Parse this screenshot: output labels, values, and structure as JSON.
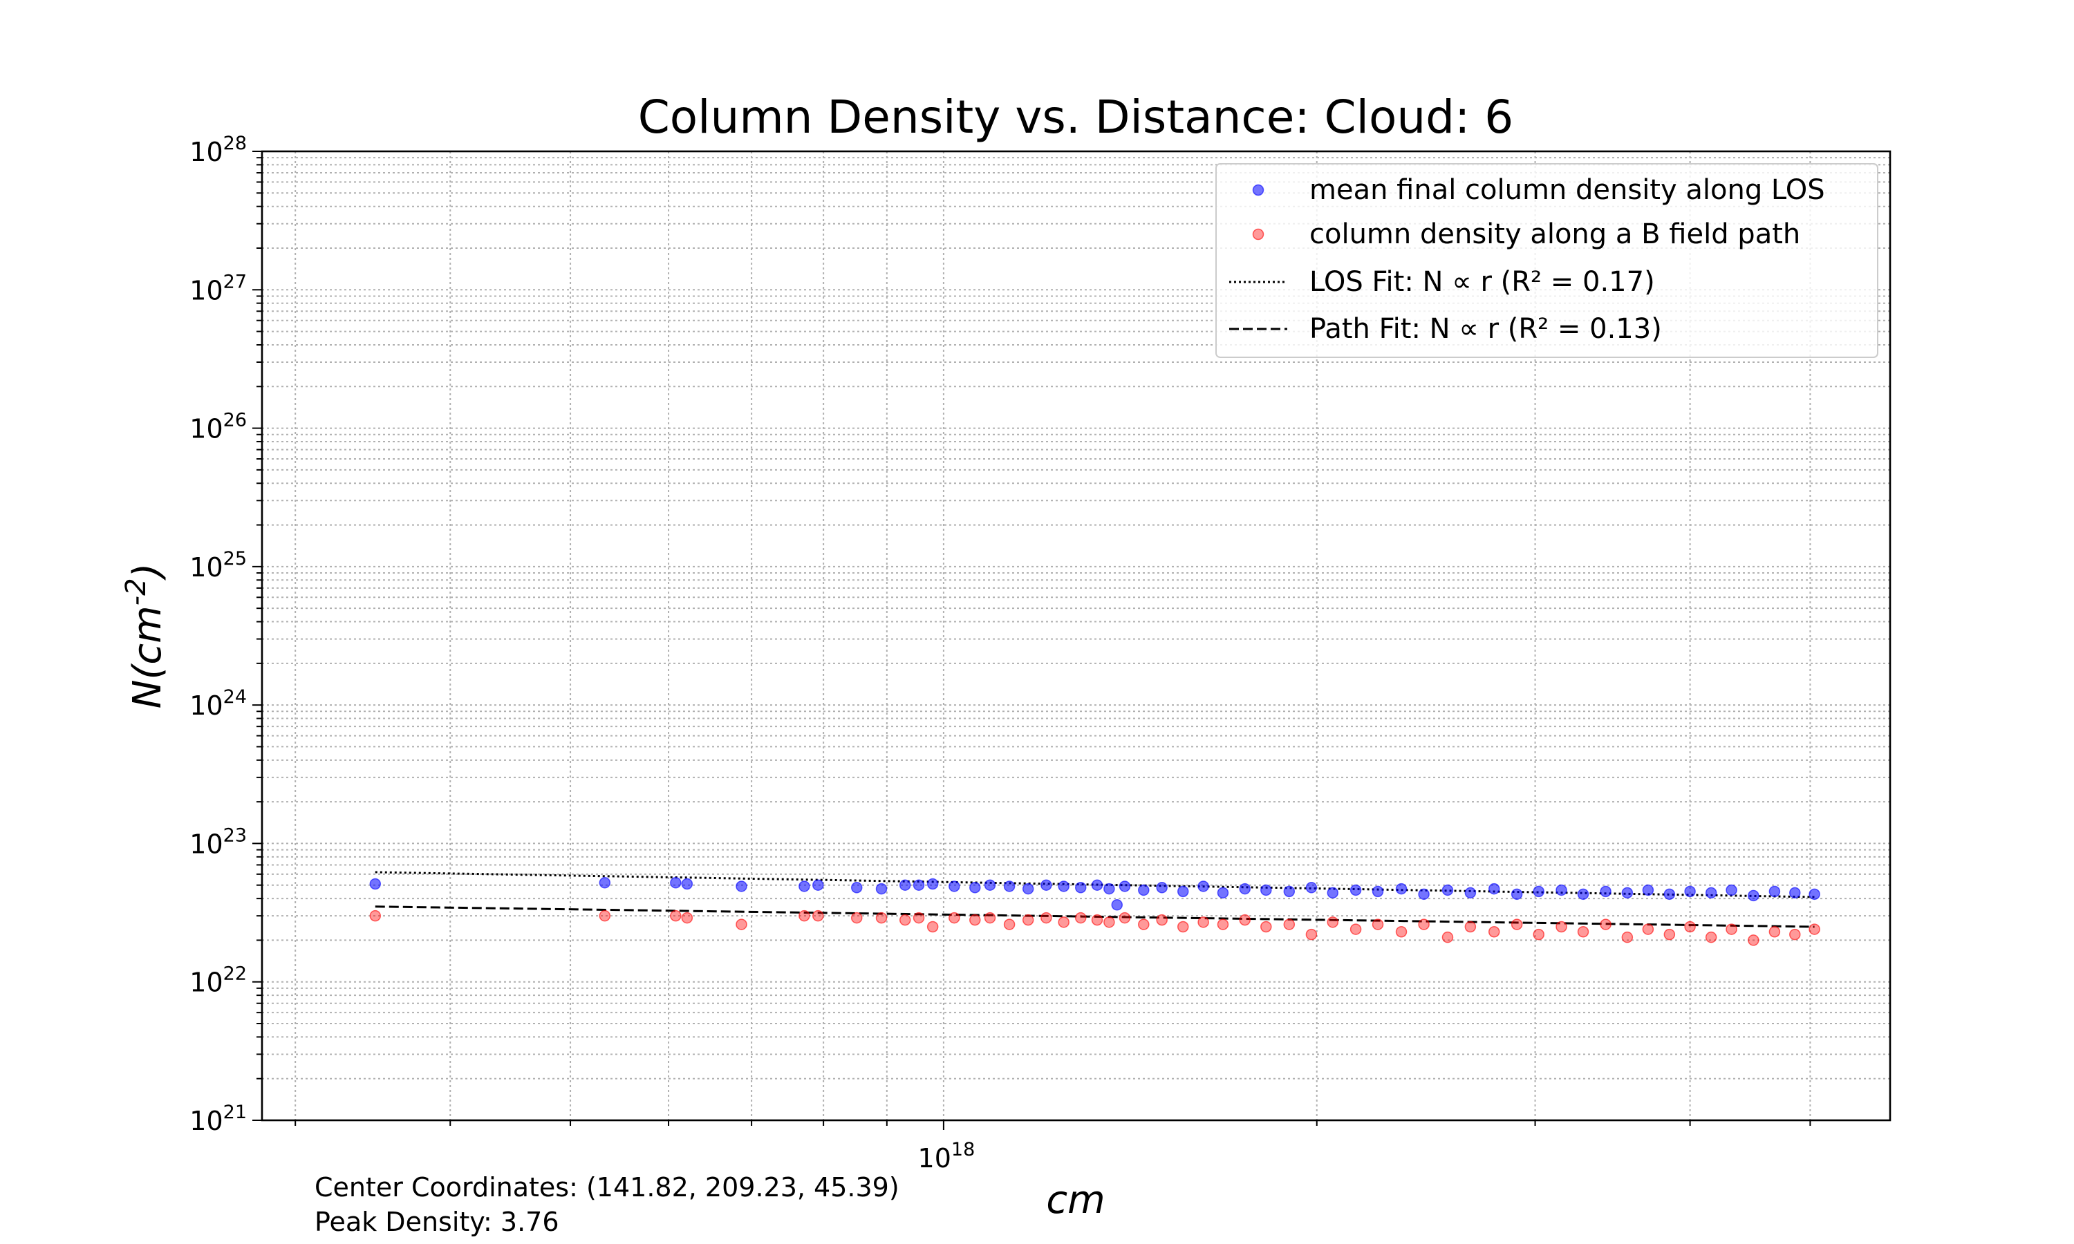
{
  "chart_data": {
    "type": "scatter",
    "title": "Column Density vs. Distance: Cloud: 6",
    "xlabel": "cm",
    "ylabel": "N(cm^-2)",
    "x_scale": "log",
    "y_scale": "log",
    "xlim": [
      2.82e+17,
      5.8e+18
    ],
    "ylim": [
      1e+21,
      1e+28
    ],
    "x_tick_labels": [
      {
        "value": 1e+18,
        "label": "10",
        "exp": "18"
      }
    ],
    "y_tick_labels": [
      {
        "value": 1e+21,
        "label": "10",
        "exp": "21"
      },
      {
        "value": 1e+22,
        "label": "10",
        "exp": "22"
      },
      {
        "value": 1e+23,
        "label": "10",
        "exp": "23"
      },
      {
        "value": 1e+24,
        "label": "10",
        "exp": "24"
      },
      {
        "value": 1e+25,
        "label": "10",
        "exp": "25"
      },
      {
        "value": 1e+26,
        "label": "10",
        "exp": "26"
      },
      {
        "value": 1e+27,
        "label": "10",
        "exp": "27"
      },
      {
        "value": 1e+28,
        "label": "10",
        "exp": "28"
      }
    ],
    "grid": true,
    "legend_position": "top-right",
    "legend": [
      " mean final column density along LOS",
      "column density along a B field path",
      "LOS Fit: N ∝ r (R² = 0.17)",
      "Path Fit: N ∝ r (R² = 0.13)"
    ],
    "series": [
      {
        "name": " mean final column density along LOS",
        "kind": "scatter",
        "color": "#0000ff",
        "points": [
          [
            3.48e+17,
            5.1e+22
          ],
          [
            5.33e+17,
            5.2e+22
          ],
          [
            6.08e+17,
            5.2e+22
          ],
          [
            6.21e+17,
            5.1e+22
          ],
          [
            6.87e+17,
            4.9e+22
          ],
          [
            7.72e+17,
            4.9e+22
          ],
          [
            7.92e+17,
            5e+22
          ],
          [
            8.51e+17,
            4.8e+22
          ],
          [
            8.91e+17,
            4.7e+22
          ],
          [
            9.31e+17,
            5e+22
          ],
          [
            9.55e+17,
            5e+22
          ],
          [
            9.8e+17,
            5.1e+22
          ],
          [
            1.02e+18,
            4.9e+22
          ],
          [
            1.06e+18,
            4.8e+22
          ],
          [
            1.09e+18,
            5e+22
          ],
          [
            1.13e+18,
            4.9e+22
          ],
          [
            1.17e+18,
            4.7e+22
          ],
          [
            1.21e+18,
            5e+22
          ],
          [
            1.25e+18,
            4.9e+22
          ],
          [
            1.29e+18,
            4.8e+22
          ],
          [
            1.33e+18,
            5e+22
          ],
          [
            1.36e+18,
            4.7e+22
          ],
          [
            1.38e+18,
            3.6e+22
          ],
          [
            1.4e+18,
            4.9e+22
          ],
          [
            1.45e+18,
            4.6e+22
          ],
          [
            1.5e+18,
            4.8e+22
          ],
          [
            1.56e+18,
            4.5e+22
          ],
          [
            1.62e+18,
            4.9e+22
          ],
          [
            1.68e+18,
            4.4e+22
          ],
          [
            1.75e+18,
            4.7e+22
          ],
          [
            1.82e+18,
            4.6e+22
          ],
          [
            1.9e+18,
            4.5e+22
          ],
          [
            1.98e+18,
            4.8e+22
          ],
          [
            2.06e+18,
            4.4e+22
          ],
          [
            2.15e+18,
            4.6e+22
          ],
          [
            2.24e+18,
            4.5e+22
          ],
          [
            2.34e+18,
            4.7e+22
          ],
          [
            2.44e+18,
            4.3e+22
          ],
          [
            2.55e+18,
            4.6e+22
          ],
          [
            2.66e+18,
            4.4e+22
          ],
          [
            2.78e+18,
            4.7e+22
          ],
          [
            2.9e+18,
            4.3e+22
          ],
          [
            3.02e+18,
            4.5e+22
          ],
          [
            3.15e+18,
            4.6e+22
          ],
          [
            3.28e+18,
            4.3e+22
          ],
          [
            3.42e+18,
            4.5e+22
          ],
          [
            3.56e+18,
            4.4e+22
          ],
          [
            3.7e+18,
            4.6e+22
          ],
          [
            3.85e+18,
            4.3e+22
          ],
          [
            4e+18,
            4.5e+22
          ],
          [
            4.16e+18,
            4.4e+22
          ],
          [
            4.32e+18,
            4.6e+22
          ],
          [
            4.5e+18,
            4.2e+22
          ],
          [
            4.68e+18,
            4.5e+22
          ],
          [
            4.86e+18,
            4.4e+22
          ],
          [
            5.04e+18,
            4.3e+22
          ]
        ]
      },
      {
        "name": "column density along a B field path",
        "kind": "scatter",
        "color": "#ff0000",
        "points": [
          [
            3.48e+17,
            3e+22
          ],
          [
            5.33e+17,
            3e+22
          ],
          [
            6.08e+17,
            3e+22
          ],
          [
            6.21e+17,
            2.9e+22
          ],
          [
            6.87e+17,
            2.6e+22
          ],
          [
            7.72e+17,
            3e+22
          ],
          [
            7.92e+17,
            3e+22
          ],
          [
            8.51e+17,
            2.9e+22
          ],
          [
            8.91e+17,
            2.9e+22
          ],
          [
            9.31e+17,
            2.8e+22
          ],
          [
            9.55e+17,
            2.9e+22
          ],
          [
            9.8e+17,
            2.5e+22
          ],
          [
            1.02e+18,
            2.9e+22
          ],
          [
            1.06e+18,
            2.8e+22
          ],
          [
            1.09e+18,
            2.9e+22
          ],
          [
            1.13e+18,
            2.6e+22
          ],
          [
            1.17e+18,
            2.8e+22
          ],
          [
            1.21e+18,
            2.9e+22
          ],
          [
            1.25e+18,
            2.7e+22
          ],
          [
            1.29e+18,
            2.9e+22
          ],
          [
            1.33e+18,
            2.8e+22
          ],
          [
            1.36e+18,
            2.7e+22
          ],
          [
            1.4e+18,
            2.9e+22
          ],
          [
            1.45e+18,
            2.6e+22
          ],
          [
            1.5e+18,
            2.8e+22
          ],
          [
            1.56e+18,
            2.5e+22
          ],
          [
            1.62e+18,
            2.7e+22
          ],
          [
            1.68e+18,
            2.6e+22
          ],
          [
            1.75e+18,
            2.8e+22
          ],
          [
            1.82e+18,
            2.5e+22
          ],
          [
            1.9e+18,
            2.6e+22
          ],
          [
            1.98e+18,
            2.2e+22
          ],
          [
            2.06e+18,
            2.7e+22
          ],
          [
            2.15e+18,
            2.4e+22
          ],
          [
            2.24e+18,
            2.6e+22
          ],
          [
            2.34e+18,
            2.3e+22
          ],
          [
            2.44e+18,
            2.6e+22
          ],
          [
            2.55e+18,
            2.1e+22
          ],
          [
            2.66e+18,
            2.5e+22
          ],
          [
            2.78e+18,
            2.3e+22
          ],
          [
            2.9e+18,
            2.6e+22
          ],
          [
            3.02e+18,
            2.2e+22
          ],
          [
            3.15e+18,
            2.5e+22
          ],
          [
            3.28e+18,
            2.3e+22
          ],
          [
            3.42e+18,
            2.6e+22
          ],
          [
            3.56e+18,
            2.1e+22
          ],
          [
            3.7e+18,
            2.4e+22
          ],
          [
            3.85e+18,
            2.2e+22
          ],
          [
            4e+18,
            2.5e+22
          ],
          [
            4.16e+18,
            2.1e+22
          ],
          [
            4.32e+18,
            2.4e+22
          ],
          [
            4.5e+18,
            2e+22
          ],
          [
            4.68e+18,
            2.3e+22
          ],
          [
            4.86e+18,
            2.2e+22
          ],
          [
            5.04e+18,
            2.4e+22
          ]
        ]
      },
      {
        "name": "LOS Fit: N ∝ r (R² = 0.17)",
        "kind": "line",
        "style": "dotted",
        "color": "#000000",
        "points": [
          [
            3.48e+17,
            6.2e+22
          ],
          [
            5.04e+18,
            4.1e+22
          ]
        ]
      },
      {
        "name": "Path Fit: N ∝ r (R² = 0.13)",
        "kind": "line",
        "style": "dashed",
        "color": "#000000",
        "points": [
          [
            3.48e+17,
            3.5e+22
          ],
          [
            5.04e+18,
            2.5e+22
          ]
        ]
      }
    ]
  },
  "annotations": {
    "center_coordinates": "Center Coordinates: (141.82, 209.23, 45.39)",
    "peak_density": "Peak Density: 3.76"
  }
}
